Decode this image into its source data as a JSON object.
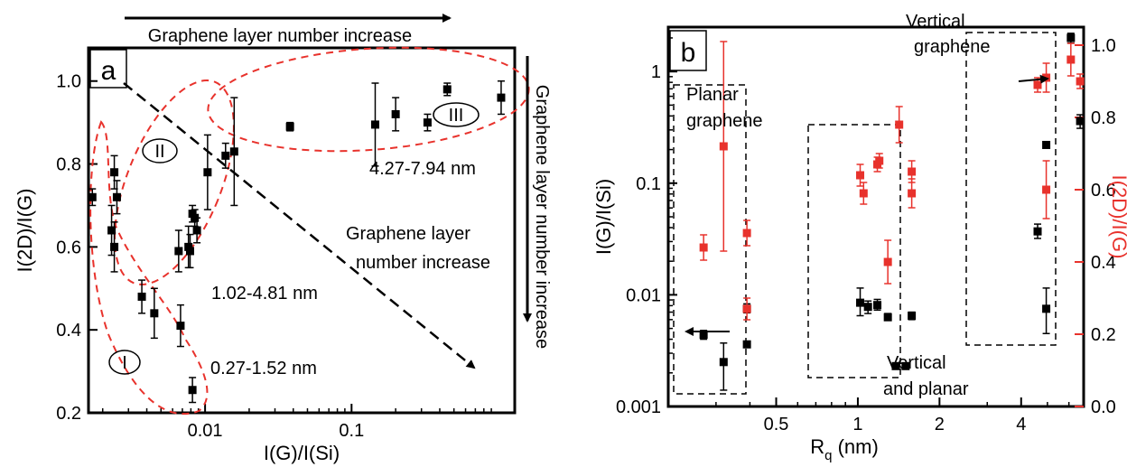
{
  "chart_data": [
    {
      "type": "scatter",
      "panel_label": "a",
      "xlabel": "I(G)/I(Si)",
      "ylabel": "I(2D)/I(G)",
      "x_scale": "log",
      "xlim": [
        0.0016,
        1.3
      ],
      "ylim": [
        0.2,
        1.08
      ],
      "x_ticks": [
        0.01,
        0.1
      ],
      "x_tick_labels": [
        "0.01",
        "0.1"
      ],
      "y_ticks": [
        0.2,
        0.4,
        0.6,
        0.8,
        1.0
      ],
      "y_tick_labels": [
        "0.2",
        "0.4",
        "0.6",
        "0.8",
        "1.0"
      ],
      "series": [
        {
          "color": "#000000",
          "points": [
            {
              "x": 0.0017,
              "y": 0.72,
              "err": 0.02
            },
            {
              "x": 0.0024,
              "y": 0.78,
              "err": 0.04
            },
            {
              "x": 0.0025,
              "y": 0.72,
              "err": 0.04
            },
            {
              "x": 0.0023,
              "y": 0.64,
              "err": 0.06
            },
            {
              "x": 0.0024,
              "y": 0.6,
              "err": 0.06
            },
            {
              "x": 0.0037,
              "y": 0.48,
              "err": 0.04
            },
            {
              "x": 0.0045,
              "y": 0.44,
              "err": 0.06
            },
            {
              "x": 0.0068,
              "y": 0.41,
              "err": 0.05
            },
            {
              "x": 0.0082,
              "y": 0.255,
              "err": 0.03
            },
            {
              "x": 0.0066,
              "y": 0.59,
              "err": 0.05
            },
            {
              "x": 0.0077,
              "y": 0.6,
              "err": 0.05
            },
            {
              "x": 0.0079,
              "y": 0.59,
              "err": 0.04
            },
            {
              "x": 0.0082,
              "y": 0.68,
              "err": 0.02
            },
            {
              "x": 0.0085,
              "y": 0.67,
              "err": 0.02
            },
            {
              "x": 0.0088,
              "y": 0.64,
              "err": 0.03
            },
            {
              "x": 0.0104,
              "y": 0.78,
              "err": 0.09
            },
            {
              "x": 0.0138,
              "y": 0.82,
              "err": 0.03
            },
            {
              "x": 0.0158,
              "y": 0.83,
              "err": 0.13
            },
            {
              "x": 0.038,
              "y": 0.89,
              "err": 0.01
            },
            {
              "x": 0.145,
              "y": 0.895,
              "err": 0.1
            },
            {
              "x": 0.2,
              "y": 0.92,
              "err": 0.04
            },
            {
              "x": 0.33,
              "y": 0.9,
              "err": 0.02
            },
            {
              "x": 0.45,
              "y": 0.98,
              "err": 0.015
            },
            {
              "x": 1.05,
              "y": 0.96,
              "err": 0.04
            }
          ]
        }
      ],
      "annotations": {
        "top_arrow_text": "Graphene layer number increase",
        "right_arrow_text": "Graphene layer number increase",
        "diagonal_text_line1": "Graphene layer",
        "diagonal_text_line2": "number increase",
        "region_I": "I",
        "region_II": "II",
        "region_III": "III",
        "range_I": "0.27-1.52 nm",
        "range_II": "1.02-4.81 nm",
        "range_III": "4.27-7.94 nm"
      }
    },
    {
      "type": "scatter",
      "panel_label": "b",
      "xlabel_main": "R",
      "xlabel_sub": "q",
      "xlabel_unit": " (nm)",
      "ylabel_left": "I(G)/I(Si)",
      "ylabel_right": "I(2D)/I(G)",
      "x_scale": "log",
      "xlim": [
        0.2,
        6.8
      ],
      "y_left_scale": "log",
      "y_left_lim": [
        0.001,
        2.5
      ],
      "y_right_lim": [
        0.0,
        1.05
      ],
      "x_ticks": [
        0.5,
        1,
        2,
        4
      ],
      "x_tick_labels": [
        "0.5",
        "1",
        "2",
        "4"
      ],
      "y_left_ticks": [
        0.001,
        0.01,
        0.1,
        1
      ],
      "y_left_tick_labels": [
        "0.001",
        "0.01",
        "0.1",
        "1"
      ],
      "y_right_ticks": [
        0.0,
        0.2,
        0.4,
        0.6,
        0.8,
        1.0
      ],
      "y_right_tick_labels": [
        "0.0",
        "0.2",
        "0.4",
        "0.6",
        "0.8",
        "1.0"
      ],
      "series": [
        {
          "axis": "left",
          "color": "#000000",
          "points": [
            {
              "x": 0.27,
              "y": 0.0044,
              "elo": 0.0004,
              "ehi": 0.0004
            },
            {
              "x": 0.32,
              "y": 0.0025,
              "elo": 0.0011,
              "ehi": 0.0012
            },
            {
              "x": 0.39,
              "y": 0.0075,
              "elo": 0.0006,
              "ehi": 0.0008
            },
            {
              "x": 0.39,
              "y": 0.0036,
              "elo": 0.0002,
              "ehi": 0.0002
            },
            {
              "x": 1.02,
              "y": 0.0085,
              "elo": 0.002,
              "ehi": 0.003
            },
            {
              "x": 1.09,
              "y": 0.0078,
              "elo": 0.001,
              "ehi": 0.001
            },
            {
              "x": 1.18,
              "y": 0.0081,
              "elo": 0.0008,
              "ehi": 0.001
            },
            {
              "x": 1.29,
              "y": 0.0063,
              "elo": 0.0004,
              "ehi": 0.0005
            },
            {
              "x": 1.38,
              "y": 0.0023,
              "elo": 0.0001,
              "ehi": 0.0001
            },
            {
              "x": 1.5,
              "y": 0.0023,
              "elo": 0.0001,
              "ehi": 0.0001
            },
            {
              "x": 1.58,
              "y": 0.0065,
              "elo": 0.0005,
              "ehi": 0.0005
            },
            {
              "x": 4.6,
              "y": 0.037,
              "elo": 0.005,
              "ehi": 0.006
            },
            {
              "x": 4.95,
              "y": 0.22,
              "elo": 0.01,
              "ehi": 0.01
            },
            {
              "x": 4.95,
              "y": 0.0075,
              "elo": 0.003,
              "ehi": 0.004
            },
            {
              "x": 6.1,
              "y": 2.0,
              "elo": 0.2,
              "ehi": 0.2
            },
            {
              "x": 6.6,
              "y": 0.36,
              "elo": 0.05,
              "ehi": 0.05
            }
          ]
        },
        {
          "axis": "right",
          "color": "#e8322c",
          "points": [
            {
              "x": 0.27,
              "y": 0.44,
              "err": 0.035
            },
            {
              "x": 0.32,
              "y": 0.72,
              "err": 0.29
            },
            {
              "x": 0.39,
              "y": 0.48,
              "err": 0.035
            },
            {
              "x": 0.39,
              "y": 0.27,
              "err": 0.03
            },
            {
              "x": 1.02,
              "y": 0.64,
              "err": 0.03
            },
            {
              "x": 1.05,
              "y": 0.59,
              "err": 0.03
            },
            {
              "x": 1.18,
              "y": 0.67,
              "err": 0.02
            },
            {
              "x": 1.2,
              "y": 0.68,
              "err": 0.02
            },
            {
              "x": 1.29,
              "y": 0.4,
              "err": 0.06
            },
            {
              "x": 1.42,
              "y": 0.78,
              "err": 0.05
            },
            {
              "x": 1.58,
              "y": 0.59,
              "err": 0.04
            },
            {
              "x": 1.58,
              "y": 0.65,
              "err": 0.03
            },
            {
              "x": 4.6,
              "y": 0.89,
              "err": 0.02
            },
            {
              "x": 4.95,
              "y": 0.91,
              "err": 0.04
            },
            {
              "x": 4.95,
              "y": 0.6,
              "err": 0.08
            },
            {
              "x": 6.1,
              "y": 0.96,
              "err": 0.045
            },
            {
              "x": 6.6,
              "y": 0.9,
              "err": 0.02
            }
          ]
        }
      ],
      "annotations": {
        "planar_line1": "Planar",
        "planar_line2": "graphene",
        "vertical_line1": "Vertical",
        "vertical_line2": "graphene",
        "mixed_line1": "Vertical",
        "mixed_line2": "and planar"
      }
    }
  ]
}
